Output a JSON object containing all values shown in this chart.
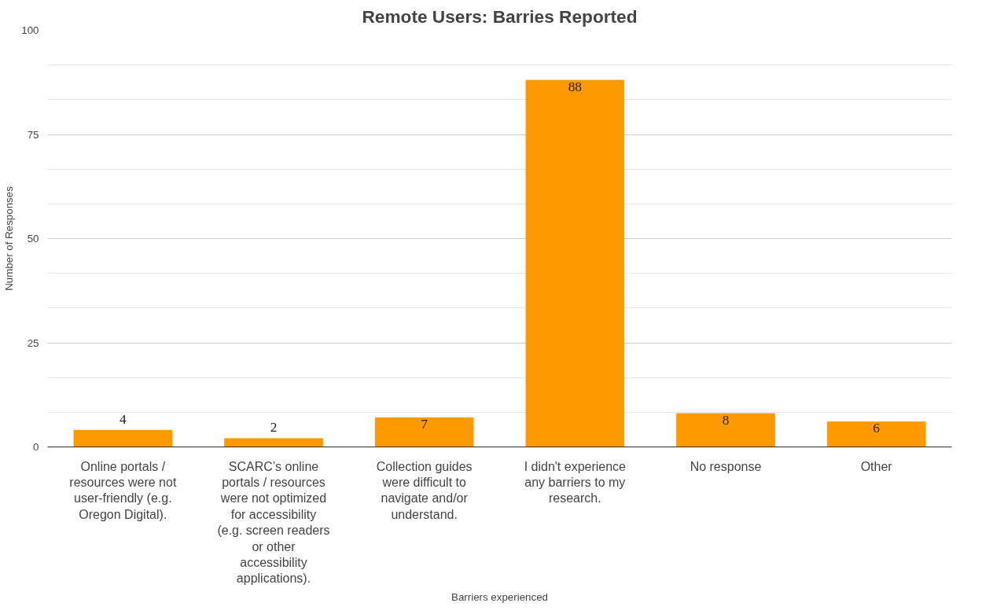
{
  "chart_data": {
    "type": "bar",
    "title": "Remote Users: Barries Reported",
    "xlabel": "Barriers experienced",
    "ylabel": "Number of Responses",
    "categories": [
      "Online portals / resources were not user-friendly (e.g. Oregon Digital).",
      "SCARC’s online portals / resources were not optimized for accessibility (e.g. screen readers or other accessibility applications).",
      "Collection guides were difficult to navigate and/or understand.",
      "I didn't experience any barriers to my research.",
      "No response",
      "Other"
    ],
    "values": [
      4,
      2,
      7,
      88,
      8,
      6
    ],
    "color": "#ff9900",
    "ylim": [
      0,
      100
    ],
    "yticks": [
      0,
      25,
      50,
      75,
      100
    ],
    "grid": "y",
    "data_labels": true
  }
}
